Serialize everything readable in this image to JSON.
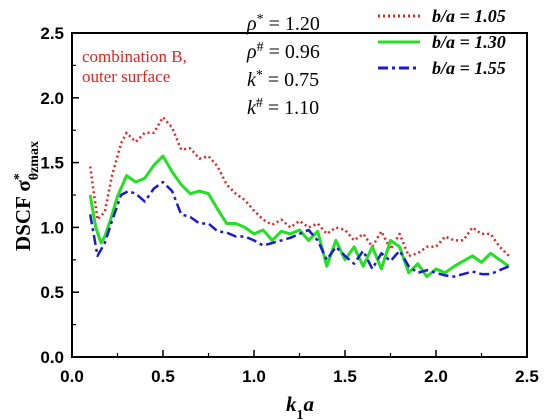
{
  "chart_data": {
    "type": "line",
    "xlabel_base": "k",
    "xlabel_sub": "1",
    "xlabel_rest": "a",
    "ylabel_main": "DSCF σ",
    "ylabel_sup": "*",
    "ylabel_sub": "θzmax",
    "xlim": [
      0.0,
      2.5
    ],
    "ylim": [
      0.0,
      2.5
    ],
    "xticks": [
      "0.0",
      "0.5",
      "1.0",
      "1.5",
      "2.0",
      "2.5"
    ],
    "yticks": [
      "0.0",
      "0.5",
      "1.0",
      "1.5",
      "2.0",
      "2.5"
    ],
    "annotation": {
      "line1": "combination B,",
      "line2": "outer surface",
      "color": "#e8231e"
    },
    "params": [
      {
        "sym": "ρ",
        "sup": "*",
        "value": " = 1.20"
      },
      {
        "sym": "ρ",
        "sup": "#",
        "value": " = 0.96"
      },
      {
        "sym": "k",
        "sup": "*",
        "value": " = 0.75"
      },
      {
        "sym": "k",
        "sup": "#",
        "value": " = 1.10"
      }
    ],
    "legend_placement": "top-right",
    "series": [
      {
        "name": "b/a = 1.05",
        "color": "#e8231e",
        "style": "dotted",
        "x": [
          0.1,
          0.14,
          0.18,
          0.22,
          0.27,
          0.3,
          0.35,
          0.4,
          0.45,
          0.5,
          0.55,
          0.6,
          0.65,
          0.7,
          0.75,
          0.8,
          0.85,
          0.9,
          0.95,
          1.0,
          1.05,
          1.1,
          1.15,
          1.2,
          1.25,
          1.3,
          1.35,
          1.4,
          1.45,
          1.5,
          1.55,
          1.6,
          1.65,
          1.7,
          1.75,
          1.8,
          1.85,
          1.9,
          1.95,
          2.0,
          2.05,
          2.1,
          2.15,
          2.2,
          2.25,
          2.3,
          2.35,
          2.4
        ],
        "y": [
          1.47,
          1.06,
          1.12,
          1.4,
          1.65,
          1.73,
          1.66,
          1.73,
          1.73,
          1.85,
          1.77,
          1.6,
          1.61,
          1.53,
          1.55,
          1.47,
          1.33,
          1.26,
          1.21,
          1.13,
          1.06,
          1.02,
          1.06,
          1.0,
          1.05,
          1.0,
          1.03,
          0.95,
          1.0,
          0.98,
          0.9,
          0.95,
          0.85,
          0.97,
          0.83,
          0.95,
          0.78,
          0.8,
          0.85,
          0.85,
          0.93,
          0.9,
          0.9,
          1.0,
          0.95,
          0.95,
          0.85,
          0.78
        ]
      },
      {
        "name": "b/a = 1.30",
        "color": "#22e022",
        "style": "solid",
        "x": [
          0.1,
          0.13,
          0.16,
          0.18,
          0.21,
          0.25,
          0.3,
          0.35,
          0.4,
          0.45,
          0.5,
          0.55,
          0.6,
          0.65,
          0.7,
          0.75,
          0.8,
          0.85,
          0.9,
          0.95,
          1.0,
          1.05,
          1.1,
          1.15,
          1.2,
          1.25,
          1.3,
          1.35,
          1.4,
          1.45,
          1.5,
          1.55,
          1.6,
          1.65,
          1.7,
          1.75,
          1.8,
          1.85,
          1.9,
          1.95,
          2.0,
          2.05,
          2.1,
          2.15,
          2.2,
          2.25,
          2.3,
          2.35,
          2.4
        ],
        "y": [
          1.25,
          1.0,
          0.88,
          0.93,
          1.05,
          1.24,
          1.4,
          1.35,
          1.38,
          1.48,
          1.55,
          1.43,
          1.33,
          1.26,
          1.28,
          1.26,
          1.14,
          1.03,
          1.03,
          1.0,
          0.95,
          0.98,
          0.9,
          0.97,
          0.95,
          0.98,
          0.9,
          0.97,
          0.7,
          0.9,
          0.75,
          0.85,
          0.7,
          0.85,
          0.68,
          0.9,
          0.85,
          0.65,
          0.72,
          0.62,
          0.68,
          0.65,
          0.7,
          0.74,
          0.78,
          0.73,
          0.8,
          0.75,
          0.7
        ]
      },
      {
        "name": "b/a = 1.55",
        "color": "#1a1ad0",
        "style": "dashdot",
        "x": [
          0.1,
          0.14,
          0.18,
          0.22,
          0.27,
          0.31,
          0.35,
          0.4,
          0.45,
          0.5,
          0.55,
          0.6,
          0.65,
          0.7,
          0.75,
          0.8,
          0.85,
          0.9,
          0.95,
          1.0,
          1.05,
          1.1,
          1.15,
          1.2,
          1.25,
          1.3,
          1.35,
          1.4,
          1.45,
          1.5,
          1.55,
          1.6,
          1.65,
          1.7,
          1.75,
          1.8,
          1.85,
          1.9,
          1.95,
          2.0,
          2.05,
          2.1,
          2.15,
          2.2,
          2.25,
          2.3,
          2.35,
          2.4
        ],
        "y": [
          1.1,
          0.78,
          0.88,
          1.05,
          1.25,
          1.28,
          1.26,
          1.2,
          1.3,
          1.35,
          1.28,
          1.1,
          1.08,
          1.03,
          1.03,
          0.97,
          0.96,
          0.93,
          0.93,
          0.9,
          0.86,
          0.88,
          0.9,
          0.92,
          0.95,
          0.98,
          0.9,
          0.75,
          0.85,
          0.78,
          0.72,
          0.82,
          0.68,
          0.8,
          0.74,
          0.82,
          0.7,
          0.65,
          0.67,
          0.65,
          0.63,
          0.62,
          0.64,
          0.66,
          0.64,
          0.64,
          0.67,
          0.7
        ]
      }
    ]
  }
}
